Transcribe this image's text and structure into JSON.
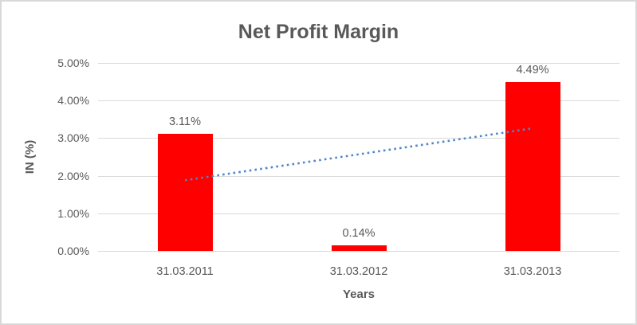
{
  "chart_data": {
    "type": "bar",
    "title": "Net Profit Margin",
    "xlabel": "Years",
    "ylabel": "IN (%)",
    "categories": [
      "31.03.2011",
      "31.03.2012",
      "31.03.2013"
    ],
    "values": [
      3.11,
      0.14,
      4.49
    ],
    "data_labels": [
      "3.11%",
      "0.14%",
      "4.49%"
    ],
    "y_ticks": [
      0,
      1,
      2,
      3,
      4,
      5
    ],
    "y_tick_labels": [
      "0.00%",
      "1.00%",
      "2.00%",
      "3.00%",
      "4.00%",
      "5.00%"
    ],
    "ylim": [
      0,
      5
    ],
    "grid": true,
    "legend": "none",
    "bar_color": "#ff0000",
    "trendline": {
      "type": "linear",
      "style": "dotted",
      "color": "#4e86c8",
      "start_value": 1.88,
      "end_value": 3.26,
      "from_category": "31.03.2011",
      "to_category": "31.03.2013"
    },
    "colors": {
      "text": "#595959",
      "gridline": "#d9d9d9",
      "frame_border": "#d9d9d9",
      "background": "#ffffff"
    }
  }
}
